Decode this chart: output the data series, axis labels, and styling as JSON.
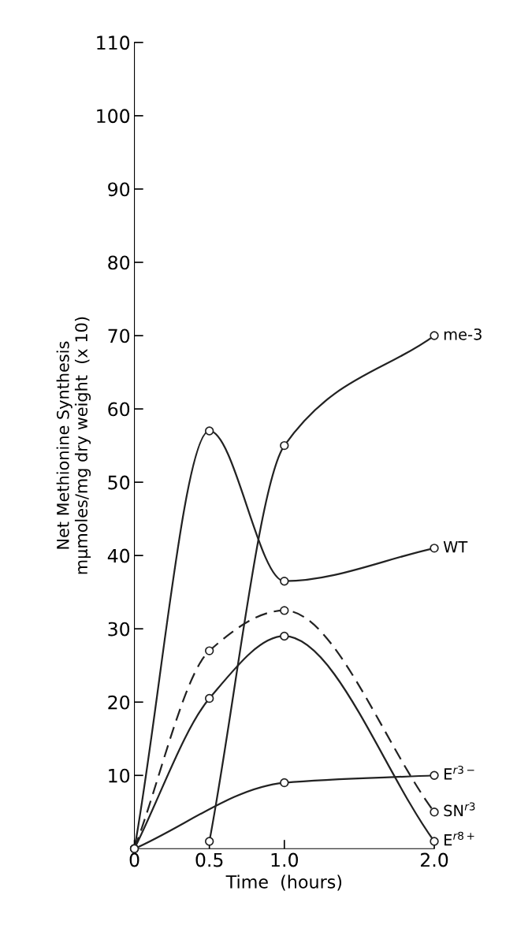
{
  "chart_data": {
    "type": "line",
    "xlabel": "Time  (hours)",
    "ylabel": "Net Methionine Synthesis\nmμmoles/mg dry weight  (x 10)",
    "xlim": [
      0,
      2.0
    ],
    "ylim": [
      0,
      110
    ],
    "xticks": [
      0,
      {
        "value": 0.5,
        "label": "0.5"
      },
      {
        "value": 1.0,
        "label": "1.0"
      },
      {
        "value": 2.0,
        "label": "2.0"
      }
    ],
    "yticks": [
      10,
      20,
      30,
      40,
      50,
      60,
      70,
      80,
      90,
      100,
      110
    ],
    "marker": "circle",
    "line_style": "solid",
    "grid": false,
    "legend": false,
    "series": [
      {
        "name": "WT",
        "color": "#222222",
        "x": [
          0,
          0.5,
          1.0,
          2.0
        ],
        "values": [
          0,
          57,
          36.5,
          41
        ]
      },
      {
        "name": "SN$^{r3}$",
        "color": "#222222",
        "line_style": "dashed",
        "x": [
          0,
          0.5,
          1.0,
          2.0
        ],
        "values": [
          0,
          27,
          32.5,
          5
        ]
      },
      {
        "name": "E$^{r3−}$",
        "color": "#222222",
        "x": [
          0,
          1.0,
          2.0
        ],
        "values": [
          0,
          9,
          10
        ]
      },
      {
        "name": "E$^{r8+}$",
        "color": "#222222",
        "x": [
          0,
          0.5,
          1.0,
          2.0
        ],
        "values": [
          0,
          20.5,
          29,
          1
        ]
      },
      {
        "name": "me-3",
        "color": "#222222",
        "x": [
          0.5,
          1.0,
          2.0
        ],
        "values": [
          1,
          55,
          70
        ]
      }
    ]
  }
}
